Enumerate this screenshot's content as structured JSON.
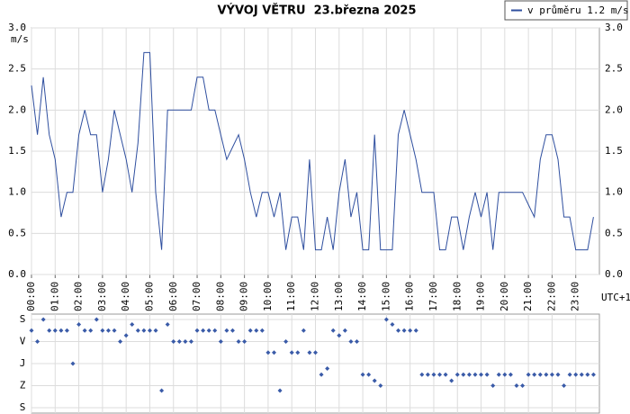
{
  "chart_data": [
    {
      "type": "line",
      "title": "VÝVOJ VĚTRU  23.března 2025",
      "y_unit": "m/s",
      "x_note": "UTC+1",
      "series": [
        {
          "name": "v průměru 1.2 m/s",
          "color": "#2f4f9f",
          "values": [
            2.3,
            1.7,
            2.4,
            1.7,
            1.4,
            0.7,
            1.0,
            1.0,
            1.7,
            2.0,
            1.7,
            1.7,
            1.0,
            1.4,
            2.0,
            1.7,
            1.4,
            1.0,
            1.6,
            2.7,
            2.7,
            1.0,
            0.3,
            2.0,
            2.0,
            2.0,
            2.0,
            2.0,
            2.4,
            2.4,
            2.0,
            2.0,
            1.7,
            1.4,
            1.55,
            1.7,
            1.4,
            1.0,
            0.7,
            1.0,
            1.0,
            0.7,
            1.0,
            0.3,
            0.7,
            0.7,
            0.3,
            1.4,
            0.3,
            0.3,
            0.7,
            0.3,
            1.0,
            1.4,
            0.7,
            1.0,
            0.3,
            0.3,
            1.7,
            0.3,
            0.3,
            0.3,
            1.7,
            2.0,
            1.7,
            1.4,
            1.0,
            1.0,
            1.0,
            0.3,
            0.3,
            0.7,
            0.7,
            0.3,
            0.7,
            1.0,
            0.7,
            1.0,
            0.3,
            1.0,
            1.0,
            1.0,
            1.0,
            1.0,
            0.85,
            0.7,
            1.4,
            1.7,
            1.7,
            1.4,
            0.7,
            0.7,
            0.3,
            0.3,
            0.3,
            0.7
          ]
        }
      ],
      "x": [
        0,
        0.25,
        0.5,
        0.75,
        1,
        1.25,
        1.5,
        1.75,
        2,
        2.25,
        2.5,
        2.75,
        3,
        3.25,
        3.5,
        3.75,
        4,
        4.25,
        4.5,
        4.75,
        5,
        5.25,
        5.5,
        5.75,
        6,
        6.25,
        6.5,
        6.75,
        7,
        7.25,
        7.5,
        7.75,
        8,
        8.25,
        8.5,
        8.75,
        9,
        9.25,
        9.5,
        9.75,
        10,
        10.25,
        10.5,
        10.75,
        11,
        11.25,
        11.5,
        11.75,
        12,
        12.25,
        12.5,
        12.75,
        13,
        13.25,
        13.5,
        13.75,
        14,
        14.25,
        14.5,
        14.75,
        15,
        15.25,
        15.5,
        15.75,
        16,
        16.25,
        16.5,
        16.75,
        17,
        17.25,
        17.5,
        17.75,
        18,
        18.25,
        18.5,
        18.75,
        19,
        19.25,
        19.5,
        19.75,
        20,
        20.25,
        20.5,
        20.75,
        21,
        21.25,
        21.5,
        21.75,
        22,
        22.25,
        22.5,
        22.75,
        23,
        23.25,
        23.5,
        23.75
      ],
      "xlim": [
        0,
        24
      ],
      "xticks": [
        {
          "value": 0,
          "label": "00:00"
        },
        {
          "value": 1,
          "label": "01:00"
        },
        {
          "value": 2,
          "label": "02:00"
        },
        {
          "value": 3,
          "label": "03:00"
        },
        {
          "value": 4,
          "label": "04:00"
        },
        {
          "value": 5,
          "label": "05:00"
        },
        {
          "value": 6,
          "label": "06:00"
        },
        {
          "value": 7,
          "label": "07:00"
        },
        {
          "value": 8,
          "label": "08:00"
        },
        {
          "value": 9,
          "label": "09:00"
        },
        {
          "value": 10,
          "label": "10:00"
        },
        {
          "value": 11,
          "label": "11:00"
        },
        {
          "value": 12,
          "label": "12:00"
        },
        {
          "value": 13,
          "label": "13:00"
        },
        {
          "value": 14,
          "label": "14:00"
        },
        {
          "value": 15,
          "label": "15:00"
        },
        {
          "value": 16,
          "label": "16:00"
        },
        {
          "value": 17,
          "label": "17:00"
        },
        {
          "value": 18,
          "label": "18:00"
        },
        {
          "value": 19,
          "label": "19:00"
        },
        {
          "value": 20,
          "label": "20:00"
        },
        {
          "value": 21,
          "label": "21:00"
        },
        {
          "value": 22,
          "label": "22:00"
        },
        {
          "value": 23,
          "label": "23:00"
        }
      ],
      "ylim": [
        0,
        3
      ],
      "yticks": [
        {
          "value": 0,
          "label": "0.0"
        },
        {
          "value": 0.5,
          "label": "0.5"
        },
        {
          "value": 1,
          "label": "1.0"
        },
        {
          "value": 1.5,
          "label": "1.5"
        },
        {
          "value": 2,
          "label": "2.0"
        },
        {
          "value": 2.5,
          "label": "2.5"
        },
        {
          "value": 3,
          "label": "3.0"
        }
      ],
      "grid": true,
      "legend": "top-right"
    },
    {
      "type": "scatter",
      "color": "#3a5ba8",
      "x": [
        0,
        0.25,
        0.5,
        0.75,
        1,
        1.25,
        1.5,
        1.75,
        2,
        2.25,
        2.5,
        2.75,
        3,
        3.25,
        3.5,
        3.75,
        4,
        4.25,
        4.5,
        4.75,
        5,
        5.25,
        5.5,
        5.75,
        6,
        6.25,
        6.5,
        6.75,
        7,
        7.25,
        7.5,
        7.75,
        8,
        8.25,
        8.5,
        8.75,
        9,
        9.25,
        9.5,
        9.75,
        10,
        10.25,
        10.5,
        10.75,
        11,
        11.25,
        11.5,
        11.75,
        12,
        12.25,
        12.5,
        12.75,
        13,
        13.25,
        13.5,
        13.75,
        14,
        14.25,
        14.5,
        14.75,
        15,
        15.25,
        15.5,
        15.75,
        16,
        16.25,
        16.5,
        16.75,
        17,
        17.25,
        17.5,
        17.75,
        18,
        18.25,
        18.5,
        18.75,
        19,
        19.25,
        19.5,
        19.75,
        20,
        20.25,
        20.5,
        20.75,
        21,
        21.25,
        21.5,
        21.75,
        22,
        22.25,
        22.5,
        22.75,
        23,
        23.25,
        23.5,
        23.75
      ],
      "values": [
        45,
        90,
        0,
        45,
        45,
        45,
        45,
        180,
        20,
        45,
        45,
        0,
        45,
        45,
        45,
        90,
        65,
        20,
        45,
        45,
        45,
        45,
        290,
        20,
        90,
        90,
        90,
        90,
        45,
        45,
        45,
        45,
        90,
        45,
        45,
        90,
        90,
        45,
        45,
        45,
        135,
        135,
        290,
        90,
        135,
        135,
        45,
        135,
        135,
        225,
        200,
        45,
        65,
        45,
        90,
        90,
        225,
        225,
        250,
        270,
        0,
        20,
        45,
        45,
        45,
        45,
        225,
        225,
        225,
        225,
        225,
        250,
        225,
        225,
        225,
        225,
        225,
        225,
        270,
        225,
        225,
        225,
        270,
        270,
        225,
        225,
        225,
        225,
        225,
        225,
        270,
        225,
        225,
        225,
        225,
        225
      ],
      "xlim": [
        0,
        24
      ],
      "ylim": [
        360,
        0
      ],
      "yticks": [
        {
          "value": 0,
          "label": "S"
        },
        {
          "value": 90,
          "label": "V"
        },
        {
          "value": 180,
          "label": "J"
        },
        {
          "value": 270,
          "label": "Z"
        },
        {
          "value": 360,
          "label": "S"
        }
      ],
      "grid": true
    }
  ]
}
